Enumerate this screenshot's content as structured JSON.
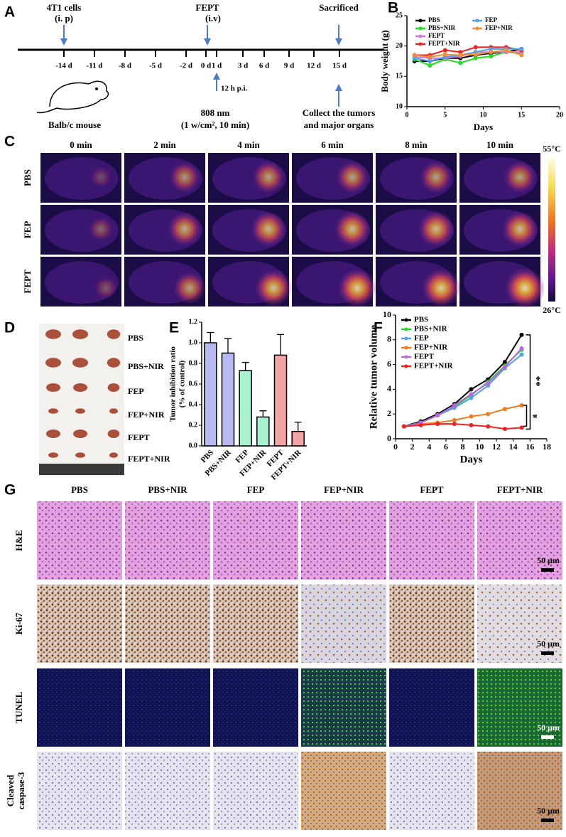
{
  "panel_labels": [
    "A",
    "B",
    "C",
    "D",
    "E",
    "F",
    "G"
  ],
  "timeline": {
    "injection_label": "4T1 cells",
    "injection_route": "(i. p)",
    "treatment_label": "FEPT",
    "treatment_route": "(i.v)",
    "end_label": "Sacrificed",
    "ticks": [
      "-14 d",
      "-11 d",
      "-8 d",
      "-5 d",
      "-2 d",
      "0 d",
      "1 d",
      "3 d",
      "6 d",
      "9 d",
      "12 d",
      "15 d"
    ],
    "irradiation_delay": "12 h p.i.",
    "laser_line1": "808 nm",
    "laser_line2": "(1 w/cm², 10 min)",
    "collect_line1": "Collect the tumors",
    "collect_line2": "and major organs",
    "mouse_label": "Balb/c mouse"
  },
  "thermal": {
    "columns": [
      "0 min",
      "2 min",
      "4 min",
      "6 min",
      "8 min",
      "10 min"
    ],
    "rows": [
      "PBS",
      "FEP",
      "FEPT"
    ],
    "colorbar_max": "55°C",
    "colorbar_min": "26°C"
  },
  "tumor_photo": {
    "rows": [
      "PBS",
      "PBS+NIR",
      "FEP",
      "FEP+NIR",
      "FEPT",
      "FEPT+NIR"
    ]
  },
  "chart_data": [
    {
      "type": "line",
      "y_label": "Body weight (g)",
      "x_label": "Days",
      "x": [
        1,
        3,
        5,
        7,
        9,
        11,
        13,
        15
      ],
      "series": [
        {
          "name": "PBS",
          "color": "#000000",
          "values": [
            17.5,
            17.5,
            18,
            18,
            18.5,
            18.8,
            19,
            19.5
          ]
        },
        {
          "name": "PBS+NIR",
          "color": "#22dd22",
          "values": [
            17.8,
            16.8,
            17.8,
            17.2,
            18,
            18.3,
            19,
            18.8
          ]
        },
        {
          "name": "FEPT",
          "color": "#cc77dd",
          "values": [
            18.2,
            18,
            18,
            18.3,
            19,
            19,
            19,
            19
          ]
        },
        {
          "name": "FEPT+NIR",
          "color": "#ee2222",
          "values": [
            18.5,
            18.5,
            19.3,
            19,
            19.8,
            19.8,
            19.8,
            19.3
          ]
        },
        {
          "name": "FEP",
          "color": "#55a0e8",
          "values": [
            18,
            17.5,
            18.2,
            18.5,
            19,
            19.5,
            19.5,
            19.5
          ]
        },
        {
          "name": "FEP+NIR",
          "color": "#f09030",
          "values": [
            18.5,
            18.2,
            18.6,
            18.5,
            18.6,
            19,
            19.3,
            18.5
          ]
        }
      ],
      "xlim": [
        0,
        20
      ],
      "xticks": [
        0,
        5,
        10,
        15,
        20
      ],
      "ylim": [
        10,
        25
      ],
      "yticks": [
        10,
        15,
        20,
        25
      ],
      "legend": "upper center",
      "legend_columns": 2
    },
    {
      "type": "bar",
      "y_label": [
        "Tumor inhibition ratio",
        "(% of control)"
      ],
      "categories": [
        "PBS",
        "PBS+NIR",
        "FEP",
        "FEP+NIR",
        "FEPT",
        "FEPT+NIR"
      ],
      "values": [
        1.0,
        0.9,
        0.73,
        0.28,
        0.88,
        0.14
      ],
      "errors": [
        0.1,
        0.14,
        0.08,
        0.06,
        0.2,
        0.09
      ],
      "colors": [
        "#b8b8f2",
        "#b8b8f2",
        "#a8f2d2",
        "#a8f2d2",
        "#f4a4a4",
        "#f4a4a4"
      ],
      "ylim": [
        0,
        1.2
      ],
      "yticks": [
        {
          "value": 0,
          "label": "0.0"
        },
        0.2,
        0.4,
        0.6,
        0.8,
        {
          "value": 1,
          "label": "1.0"
        },
        1.2
      ]
    },
    {
      "type": "line",
      "y_label": "Relative tumor volume",
      "x_label": "Days",
      "x": [
        1,
        3,
        5,
        7,
        9,
        11,
        13,
        15
      ],
      "series": [
        {
          "name": "PBS",
          "color": "#000000",
          "values": [
            1,
            1.4,
            2,
            2.8,
            4,
            4.8,
            6.2,
            8.4
          ]
        },
        {
          "name": "PBS+NIR",
          "color": "#22dd22",
          "values": [
            1,
            1.3,
            1.9,
            2.6,
            3.5,
            4.6,
            5.9,
            7.2
          ]
        },
        {
          "name": "FEP",
          "color": "#55a0e8",
          "values": [
            1,
            1.3,
            1.9,
            2.5,
            3.3,
            4.3,
            5.7,
            6.8
          ]
        },
        {
          "name": "FEP+NIR",
          "color": "#f07a20",
          "values": [
            1,
            1.2,
            1.3,
            1.5,
            1.8,
            2,
            2.4,
            2.7
          ]
        },
        {
          "name": "FEPT",
          "color": "#bb66dd",
          "values": [
            1,
            1.3,
            1.9,
            2.7,
            3.6,
            4.5,
            5.8,
            7.3
          ]
        },
        {
          "name": "FEPT+NIR",
          "color": "#ee2222",
          "values": [
            1,
            1.1,
            1.2,
            1.2,
            1.1,
            1,
            0.8,
            0.9
          ]
        }
      ],
      "xlim": [
        0,
        18
      ],
      "xticks": [
        0,
        2,
        4,
        6,
        8,
        10,
        12,
        14,
        16,
        18
      ],
      "ylim": [
        0,
        10
      ],
      "yticks": [
        0,
        2,
        4,
        6,
        8,
        10
      ],
      "legend": "upper left",
      "legend_columns": 1,
      "annotations": [
        "**",
        "*"
      ]
    }
  ],
  "histology": {
    "columns": [
      "PBS",
      "PBS+NIR",
      "FEP",
      "FEP+NIR",
      "FEPT",
      "FEPT+NIR"
    ],
    "rows": [
      "H&E",
      "Ki-67",
      "TUNEL",
      [
        "Cleaved",
        "caspase-3"
      ]
    ],
    "scale_bars": [
      "50 μm",
      "50 μm",
      "50 μm",
      "50 μm"
    ]
  }
}
